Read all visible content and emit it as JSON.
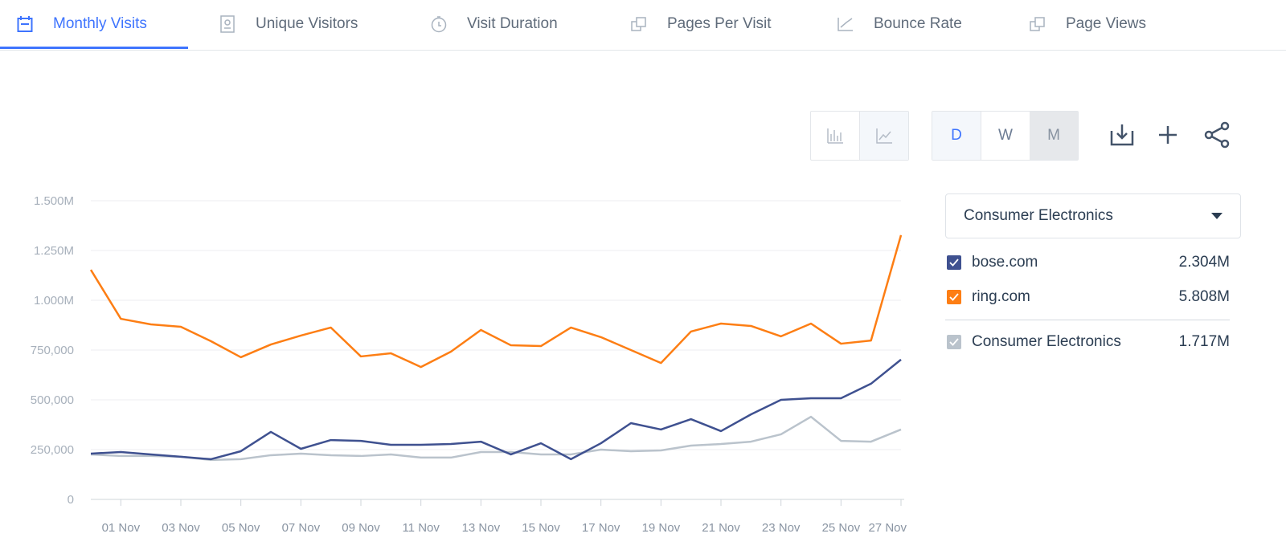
{
  "tabs": [
    {
      "label": "Monthly Visits",
      "icon": "calendar-icon",
      "active": true
    },
    {
      "label": "Unique Visitors",
      "icon": "id-badge-icon"
    },
    {
      "label": "Visit Duration",
      "icon": "stopwatch-icon"
    },
    {
      "label": "Pages Per Visit",
      "icon": "pages-icon"
    },
    {
      "label": "Bounce Rate",
      "icon": "bounce-icon"
    },
    {
      "label": "Page Views",
      "icon": "pages-icon"
    }
  ],
  "toolbar": {
    "chart_types": [
      "bar-chart-icon",
      "line-chart-icon"
    ],
    "granularity": [
      "D",
      "W",
      "M"
    ],
    "granularity_selected": "D",
    "actions": [
      "download-icon",
      "plus-icon",
      "share-icon"
    ]
  },
  "dropdown": {
    "value": "Consumer Electronics"
  },
  "legend": [
    {
      "label": "bose.com",
      "value": "2.304M",
      "color": "#3f5190"
    },
    {
      "label": "ring.com",
      "value": "5.808M",
      "color": "#fd7e14"
    },
    {
      "label": "Consumer Electronics",
      "value": "1.717M",
      "color": "#bac3cc"
    }
  ],
  "chart_data": {
    "type": "line",
    "x": [
      "31 Oct",
      "01 Nov",
      "02 Nov",
      "03 Nov",
      "04 Nov",
      "05 Nov",
      "06 Nov",
      "07 Nov",
      "08 Nov",
      "09 Nov",
      "10 Nov",
      "11 Nov",
      "12 Nov",
      "13 Nov",
      "14 Nov",
      "15 Nov",
      "16 Nov",
      "17 Nov",
      "18 Nov",
      "19 Nov",
      "20 Nov",
      "21 Nov",
      "22 Nov",
      "23 Nov",
      "24 Nov",
      "25 Nov",
      "26 Nov",
      "27 Nov"
    ],
    "xtick_labels": [
      "01 Nov",
      "03 Nov",
      "05 Nov",
      "07 Nov",
      "09 Nov",
      "11 Nov",
      "13 Nov",
      "15 Nov",
      "17 Nov",
      "19 Nov",
      "21 Nov",
      "23 Nov",
      "25 Nov",
      "27 Nov"
    ],
    "ytick_labels": [
      "0",
      "250,000",
      "500,000",
      "750,000",
      "1.000M",
      "1.250M",
      "1.500M"
    ],
    "ylim": [
      0,
      1500000
    ],
    "grid": true,
    "series": [
      {
        "name": "ring.com",
        "color": "#fd7e14",
        "values": [
          1153000,
          907000,
          879000,
          867000,
          795000,
          714000,
          778000,
          823000,
          863000,
          718000,
          734000,
          665000,
          742000,
          851000,
          774000,
          770000,
          863000,
          815000,
          750000,
          685000,
          843000,
          883000,
          871000,
          819000,
          883000,
          782000,
          798000,
          1327000
        ]
      },
      {
        "name": "bose.com",
        "color": "#3f5190",
        "values": [
          230000,
          238000,
          226000,
          214000,
          202000,
          242000,
          339000,
          254000,
          298000,
          294000,
          274000,
          274000,
          278000,
          290000,
          226000,
          282000,
          202000,
          282000,
          383000,
          351000,
          403000,
          343000,
          427000,
          500000,
          508000,
          508000,
          581000,
          702000
        ]
      },
      {
        "name": "Consumer Electronics",
        "color": "#bac3cc",
        "values": [
          226000,
          218000,
          218000,
          214000,
          198000,
          202000,
          222000,
          230000,
          222000,
          218000,
          226000,
          210000,
          210000,
          238000,
          238000,
          226000,
          226000,
          250000,
          242000,
          246000,
          270000,
          278000,
          290000,
          327000,
          415000,
          294000,
          290000,
          351000
        ]
      }
    ]
  }
}
